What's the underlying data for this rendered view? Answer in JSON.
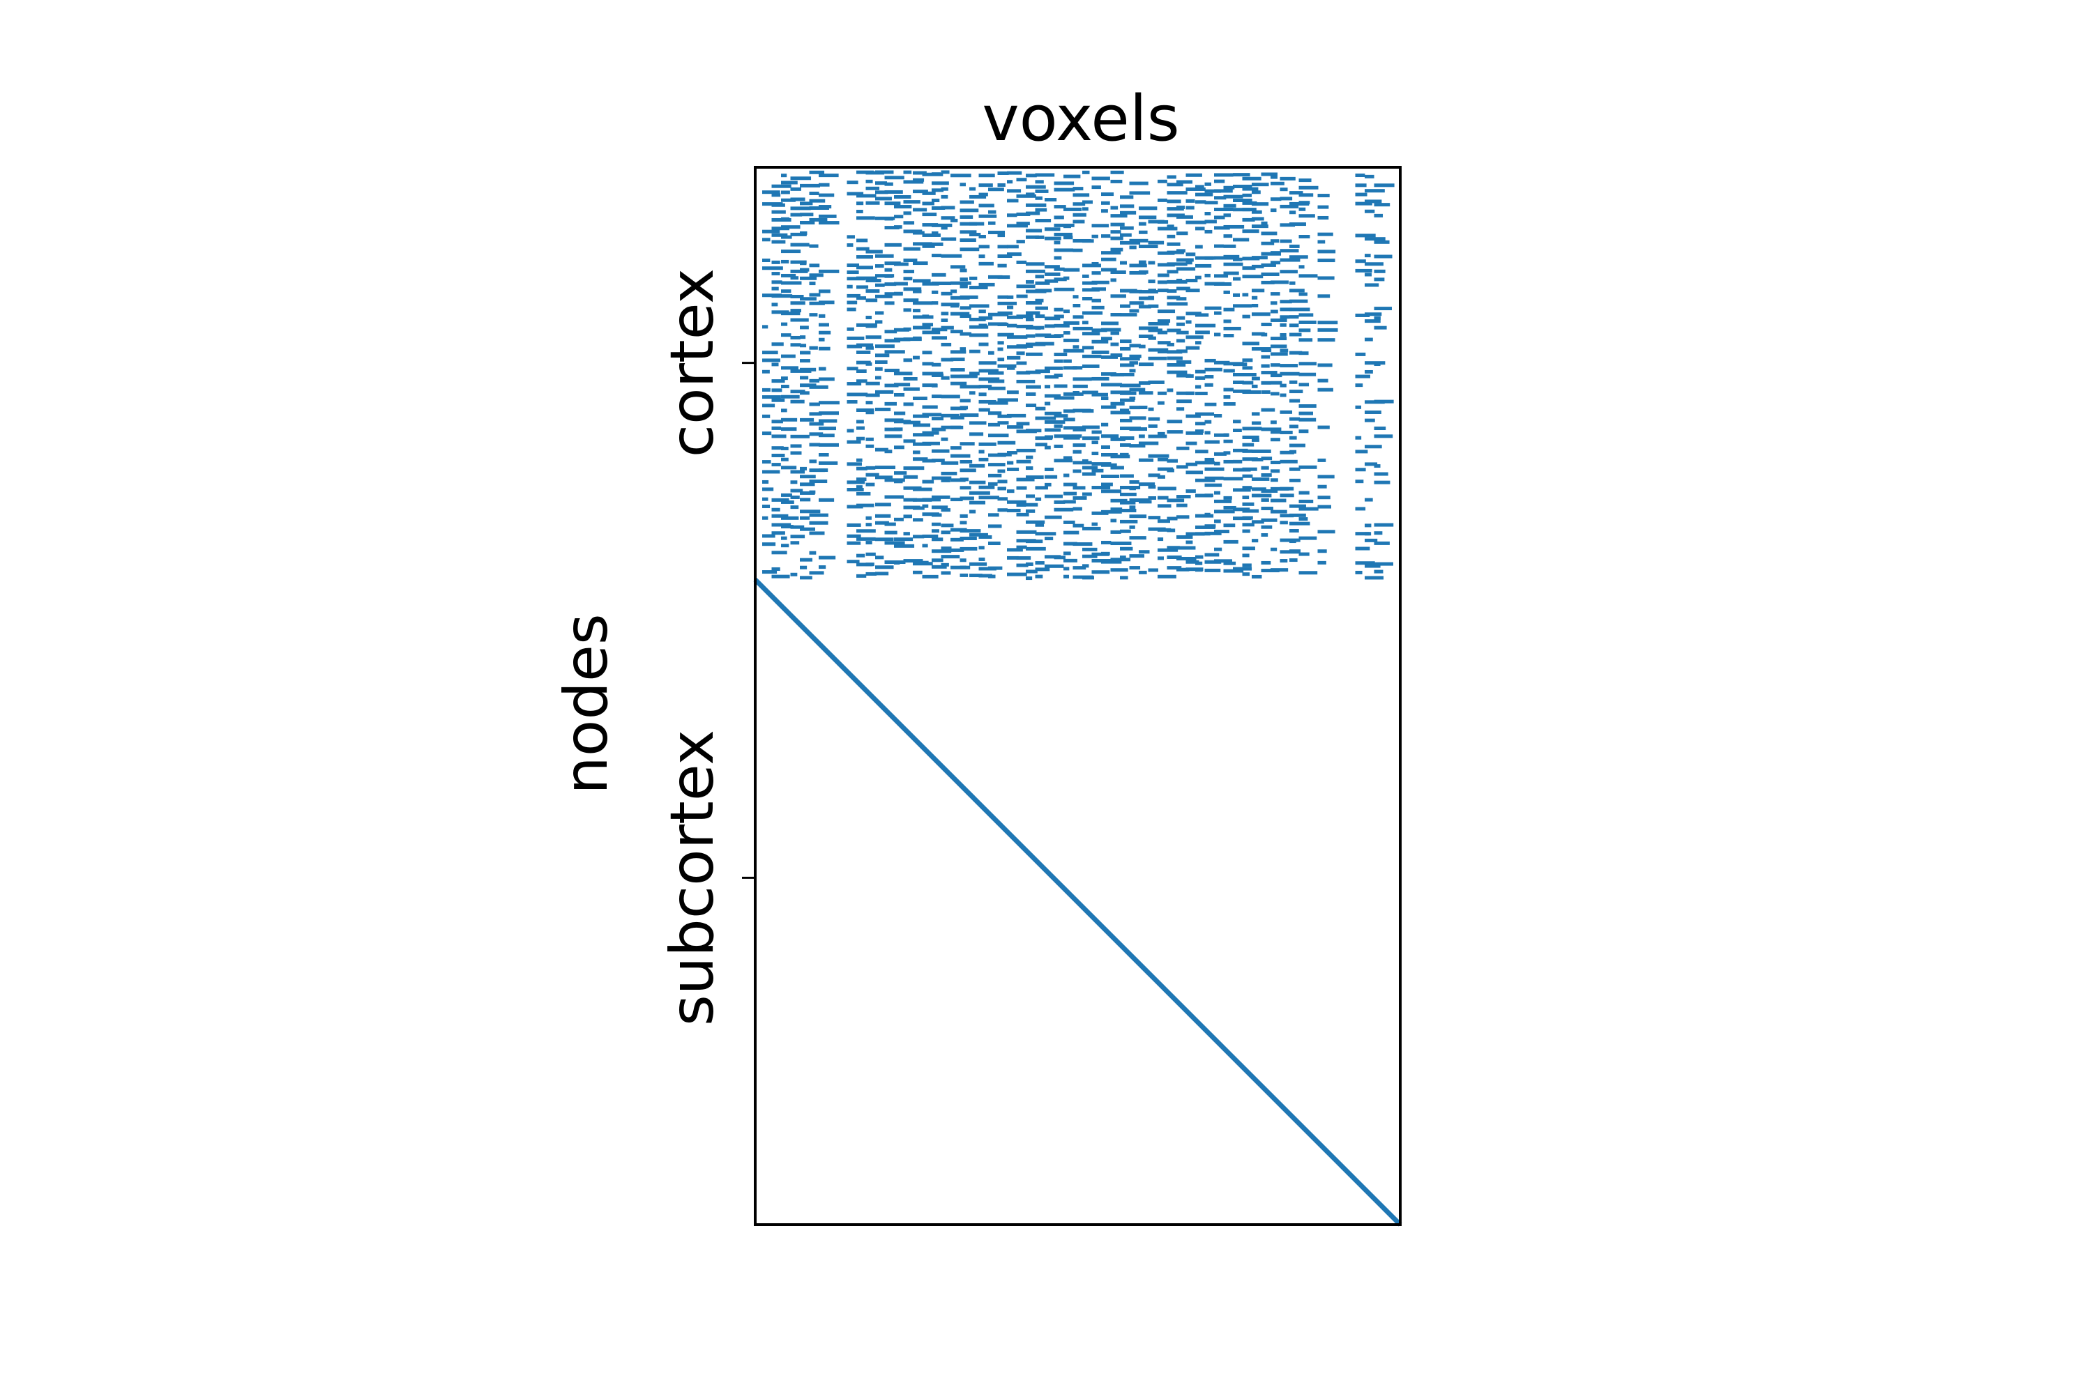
{
  "chart_data": {
    "type": "heatmap",
    "title": "voxels",
    "xlabel": "",
    "ylabel": "nodes",
    "xticks": [],
    "yticks": [
      {
        "label": "cortex",
        "row_fraction": 0.185
      },
      {
        "label": "subcortex",
        "row_fraction": 0.672
      }
    ],
    "grid": false,
    "legend": "none",
    "cortex_end_fraction": 0.39,
    "pattern": {
      "cortex_block": "sparse scattered nonzero entries in the top 39% of rows",
      "subcortex_block": "diagonal band from top-left of subcortex rows to bottom-right corner"
    },
    "colors": {
      "mark": "#1f77b4",
      "axes": "#000000",
      "background": "#ffffff"
    }
  }
}
